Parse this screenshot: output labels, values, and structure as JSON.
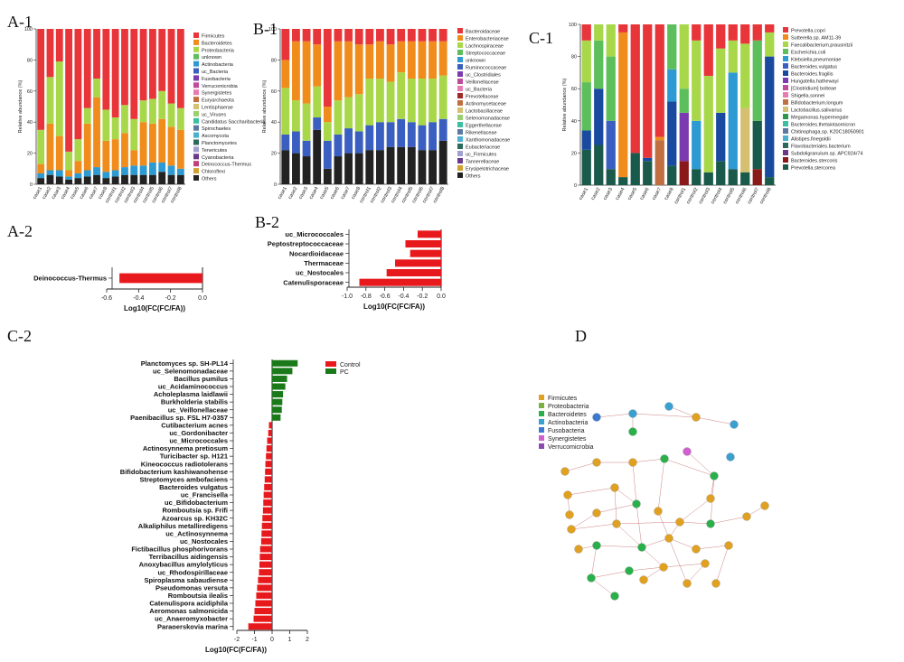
{
  "panels": {
    "a1": "A-1",
    "b1": "B-1",
    "c1": "C-1",
    "a2": "A-2",
    "b2": "B-2",
    "c2": "C-2",
    "d": "D"
  },
  "samples": [
    "case1",
    "case2",
    "case3",
    "case4",
    "case5",
    "case6",
    "case7",
    "case8",
    "control1",
    "control2",
    "control3",
    "control4",
    "control5",
    "control6",
    "control7",
    "control8"
  ],
  "ylabel_rel": "Relative abundance (%)",
  "yticks_rel": [
    0,
    20,
    40,
    60,
    80,
    100
  ],
  "chart_data": [
    {
      "id": "A1",
      "type": "bar",
      "stacked": true,
      "ylabel": "Relative abundance (%)",
      "ylim": [
        0,
        100
      ],
      "categories": [
        "case1",
        "case2",
        "case3",
        "case4",
        "case5",
        "case6",
        "case7",
        "case8",
        "control1",
        "control2",
        "control3",
        "control4",
        "control5",
        "control6",
        "control7",
        "control8"
      ],
      "legend": [
        "Firmicutes",
        "Bacteroidetes",
        "Proteobacteria",
        "unknown",
        "Actinobacteria",
        "uc_Bacteria",
        "Fusobacteria",
        "Verrucomicrobia",
        "Synergistetes",
        "Euryarchaeota",
        "Lentisphaerae",
        "uc_Viruses",
        "Candidatus Saccharibacteria",
        "Spirochaetes",
        "Ascomycota",
        "Planctomycetes",
        "Tenericutes",
        "Cyanobacteria",
        "Deinococcus-Thermus",
        "Chloroflexi",
        "Others"
      ],
      "colors": [
        "#e8353a",
        "#f08c1c",
        "#a8d84a",
        "#5cbf5c",
        "#2d9ad4",
        "#3a5fc0",
        "#7a3ab0",
        "#c04b9a",
        "#e87bb0",
        "#c07040",
        "#d4c070",
        "#9ad070",
        "#3ac0a0",
        "#5a7aa0",
        "#4ab0d0",
        "#2a6a5a",
        "#a0a0d0",
        "#6a3a8a",
        "#c0407a",
        "#d0a030",
        "#222222"
      ],
      "series_order": [
        "Others",
        "Firmicutes_base",
        "Proteobacteria",
        "Bacteroidetes",
        "Firmicutes_top"
      ],
      "stacks": [
        {
          "Others": 4,
          "Actinobacteria": 3,
          "Bacteroidetes": 6,
          "Proteobacteria": 22,
          "Firmicutes": 65
        },
        {
          "Others": 6,
          "Actinobacteria": 3,
          "Bacteroidetes": 30,
          "Proteobacteria": 30,
          "Firmicutes": 31
        },
        {
          "Others": 5,
          "Actinobacteria": 4,
          "Bacteroidetes": 22,
          "Proteobacteria": 48,
          "Firmicutes": 21
        },
        {
          "Others": 3,
          "Actinobacteria": 2,
          "Bacteroidetes": 4,
          "Proteobacteria": 12,
          "Firmicutes": 79
        },
        {
          "Others": 4,
          "Actinobacteria": 3,
          "Bacteroidetes": 8,
          "Proteobacteria": 14,
          "Firmicutes": 71
        },
        {
          "Others": 5,
          "Actinobacteria": 4,
          "Bacteroidetes": 30,
          "Proteobacteria": 10,
          "Firmicutes": 51
        },
        {
          "Others": 6,
          "Actinobacteria": 5,
          "Bacteroidetes": 45,
          "Proteobacteria": 12,
          "Firmicutes": 32
        },
        {
          "Others": 4,
          "Actinobacteria": 4,
          "Bacteroidetes": 20,
          "Proteobacteria": 20,
          "Firmicutes": 52
        },
        {
          "Others": 5,
          "Actinobacteria": 4,
          "Bacteroidetes": 20,
          "Proteobacteria": 14,
          "Firmicutes": 57
        },
        {
          "Others": 6,
          "Actinobacteria": 5,
          "Bacteroidetes": 22,
          "Proteobacteria": 18,
          "Firmicutes": 49
        },
        {
          "Others": 6,
          "Actinobacteria": 6,
          "Bacteroidetes": 10,
          "Proteobacteria": 20,
          "Firmicutes": 58
        },
        {
          "Others": 6,
          "Actinobacteria": 6,
          "Bacteroidetes": 28,
          "Proteobacteria": 14,
          "Firmicutes": 46
        },
        {
          "Others": 6,
          "Actinobacteria": 8,
          "Bacteroidetes": 25,
          "Proteobacteria": 16,
          "Firmicutes": 45
        },
        {
          "Others": 8,
          "Actinobacteria": 6,
          "Bacteroidetes": 28,
          "Proteobacteria": 18,
          "Firmicutes": 40
        },
        {
          "Others": 6,
          "Actinobacteria": 6,
          "Bacteroidetes": 25,
          "Proteobacteria": 15,
          "Firmicutes": 48
        },
        {
          "Others": 6,
          "Actinobacteria": 4,
          "Bacteroidetes": 25,
          "Proteobacteria": 14,
          "Firmicutes": 51
        }
      ]
    },
    {
      "id": "B1",
      "type": "bar",
      "stacked": true,
      "ylabel": "Relative abundance (%)",
      "ylim": [
        0,
        100
      ],
      "categories": [
        "case1",
        "case2",
        "case3",
        "case4",
        "case5",
        "case6",
        "case7",
        "case8",
        "control1",
        "control2",
        "control3",
        "control4",
        "control5",
        "control6",
        "control7",
        "control8"
      ],
      "legend": [
        "Bacteroidaceae",
        "Enterobacteriaceae",
        "Lachnospiraceae",
        "Streptococcaceae",
        "unknown",
        "Ruminococcaceae",
        "uc_Clostridiales",
        "Veillonellaceae",
        "uc_Bacteria",
        "Prevotellaceae",
        "Actinomycetaceae",
        "Lactobacillaceae",
        "Selenomonadaceae",
        "Eggerthellaceae",
        "Rikenellaceae",
        "Xanthomonadaceae",
        "Eubacteriaceae",
        "uc_Firmicutes",
        "Tannerellaceae",
        "Erysipelotrichaceae",
        "Others"
      ],
      "colors": [
        "#e8353a",
        "#f08c1c",
        "#a8d84a",
        "#5cbf5c",
        "#2d9ad4",
        "#3a5fc0",
        "#7a3ab0",
        "#c04b9a",
        "#e87bb0",
        "#a02a2a",
        "#c07040",
        "#d4c070",
        "#9ad070",
        "#3ac0a0",
        "#5a7aa0",
        "#4ab0d0",
        "#2a6a5a",
        "#a0a0d0",
        "#6a3a8a",
        "#d0a030",
        "#222222"
      ],
      "stacks": [
        {
          "Others": 22,
          "Ruminococcaceae": 10,
          "Lachnospiraceae": 30,
          "Enterobacteriaceae": 18,
          "Bacteroidaceae": 20
        },
        {
          "Others": 20,
          "Ruminococcaceae": 14,
          "Lachnospiraceae": 20,
          "Enterobacteriaceae": 38,
          "Bacteroidaceae": 8
        },
        {
          "Others": 18,
          "Ruminococcaceae": 10,
          "Lachnospiraceae": 24,
          "Enterobacteriaceae": 40,
          "Bacteroidaceae": 8
        },
        {
          "Others": 35,
          "Ruminococcaceae": 8,
          "Lachnospiraceae": 20,
          "Enterobacteriaceae": 27,
          "Bacteroidaceae": 10
        },
        {
          "Others": 10,
          "Ruminococcaceae": 18,
          "Lachnospiraceae": 12,
          "Enterobacteriaceae": 10,
          "Bacteroidaceae": 50
        },
        {
          "Others": 18,
          "Ruminococcaceae": 14,
          "Lachnospiraceae": 22,
          "Enterobacteriaceae": 38,
          "Bacteroidaceae": 8
        },
        {
          "Others": 20,
          "Ruminococcaceae": 16,
          "Lachnospiraceae": 20,
          "Enterobacteriaceae": 36,
          "Bacteroidaceae": 8
        },
        {
          "Others": 20,
          "Ruminococcaceae": 14,
          "Lachnospiraceae": 24,
          "Enterobacteriaceae": 32,
          "Bacteroidaceae": 10
        },
        {
          "Others": 22,
          "Ruminococcaceae": 16,
          "Lachnospiraceae": 30,
          "Enterobacteriaceae": 22,
          "Bacteroidaceae": 10
        },
        {
          "Others": 22,
          "Ruminococcaceae": 18,
          "Lachnospiraceae": 28,
          "Enterobacteriaceae": 24,
          "Bacteroidaceae": 8
        },
        {
          "Others": 24,
          "Ruminococcaceae": 16,
          "Lachnospiraceae": 26,
          "Enterobacteriaceae": 24,
          "Bacteroidaceae": 10
        },
        {
          "Others": 24,
          "Ruminococcaceae": 18,
          "Lachnospiraceae": 30,
          "Enterobacteriaceae": 20,
          "Bacteroidaceae": 8
        },
        {
          "Others": 24,
          "Ruminococcaceae": 16,
          "Lachnospiraceae": 28,
          "Enterobacteriaceae": 24,
          "Bacteroidaceae": 8
        },
        {
          "Others": 22,
          "Ruminococcaceae": 16,
          "Lachnospiraceae": 30,
          "Enterobacteriaceae": 24,
          "Bacteroidaceae": 8
        },
        {
          "Others": 22,
          "Ruminococcaceae": 18,
          "Lachnospiraceae": 28,
          "Enterobacteriaceae": 24,
          "Bacteroidaceae": 8
        },
        {
          "Others": 28,
          "Ruminococcaceae": 14,
          "Lachnospiraceae": 28,
          "Enterobacteriaceae": 22,
          "Bacteroidaceae": 8
        }
      ]
    },
    {
      "id": "C1",
      "type": "bar",
      "stacked": true,
      "ylabel": "Relative abundance (%)",
      "ylim": [
        0,
        100
      ],
      "categories": [
        "case1",
        "case2",
        "case3",
        "case4",
        "case5",
        "case6",
        "case7",
        "case8",
        "control1",
        "control2",
        "control3",
        "control4",
        "control5",
        "control6",
        "control7",
        "control8"
      ],
      "legend": [
        "Prevotella.copri",
        "Sutterella.sp. AM11-39",
        "Faecalibacterium.prausnitzii",
        "Escherichia.coli",
        "Klebsiella.pneumoniae",
        "Bacteroides.vulgatus",
        "Bacteroides.fragilis",
        "Hungatella.hathewayi",
        "[Clostridium] bolteae",
        "Shigella.sonnei",
        "Bifidobacterium.longum",
        "Lactobacillus.salivarius",
        "Megamonas.hypermegale",
        "Bacteroides.thetaiotaomicron",
        "Chitinophaga.sp. K20C18050901",
        "Alistipes.finegoldii",
        "Flavobacteriales.bacterium",
        "Subdoligranulum.sp. APC924/74",
        "Bacteroides.stercoris",
        "Prevotella.stercorea"
      ],
      "colors": [
        "#e8353a",
        "#f08c1c",
        "#a8d84a",
        "#5cbf5c",
        "#2d9ad4",
        "#3a5fc0",
        "#1a4aa0",
        "#7a3ab0",
        "#c04b9a",
        "#e87bb0",
        "#c07040",
        "#d4c070",
        "#2a9a4a",
        "#3ac0a0",
        "#5a7aa0",
        "#4ab0d0",
        "#2a6a5a",
        "#6a3a8a",
        "#8a1a1a",
        "#1a5a4a"
      ],
      "stacks": [
        {
          "Prevotella.stercorea": 22,
          "Bacteroides.fragilis": 12,
          "Escherichia.coli": 30,
          "Faecalibacterium.prausnitzii": 26,
          "Prevotella.copri": 10
        },
        {
          "Prevotella.stercorea": 25,
          "Bacteroides.fragilis": 35,
          "Escherichia.coli": 30,
          "Faecalibacterium.prausnitzii": 10
        },
        {
          "Prevotella.stercorea": 10,
          "Bacteroides.vulgatus": 30,
          "Escherichia.coli": 40,
          "Faecalibacterium.prausnitzii": 20
        },
        {
          "Prevotella.stercorea": 5,
          "Sutterella.sp. AM11-39": 90,
          "Prevotella.copri": 5
        },
        {
          "Prevotella.stercorea": 20,
          "Prevotella.copri": 80
        },
        {
          "Prevotella.stercorea": 15,
          "Bacteroides.fragilis": 2,
          "Prevotella.copri": 83
        },
        {
          "Bifidobacterium.longum": 28,
          "Sutterella.sp. AM11-39": 2,
          "Prevotella.copri": 70
        },
        {
          "Prevotella.stercorea": 12,
          "Bacteroides.fragilis": 40,
          "Klebsiella.pneumoniae": 20,
          "Escherichia.coli": 28
        },
        {
          "Bacteroides.stercoris": 15,
          "Hungatella.hathewayi": 30,
          "Escherichia.coli": 15,
          "Faecalibacterium.prausnitzii": 40
        },
        {
          "Prevotella.stercorea": 10,
          "Klebsiella.pneumoniae": 30,
          "Faecalibacterium.prausnitzii": 50,
          "Prevotella.copri": 10
        },
        {
          "Prevotella.stercorea": 8,
          "Faecalibacterium.prausnitzii": 60,
          "Prevotella.copri": 32
        },
        {
          "Prevotella.stercorea": 15,
          "Bacteroides.fragilis": 30,
          "Faecalibacterium.prausnitzii": 40,
          "Prevotella.copri": 15
        },
        {
          "Prevotella.stercorea": 10,
          "Klebsiella.pneumoniae": 60,
          "Faecalibacterium.prausnitzii": 20,
          "Prevotella.copri": 10
        },
        {
          "Prevotella.stercorea": 8,
          "Lactobacillus.salivarius": 40,
          "Faecalibacterium.prausnitzii": 40,
          "Prevotella.copri": 12
        },
        {
          "Bacteroides.stercoris": 10,
          "Prevotella.stercorea": 30,
          "Escherichia.coli": 50,
          "Prevotella.copri": 10
        },
        {
          "Prevotella.stercorea": 5,
          "Bacteroides.fragilis": 75,
          "Faecalibacterium.prausnitzii": 15,
          "Prevotella.copri": 5
        }
      ]
    },
    {
      "id": "A2",
      "type": "bar",
      "orientation": "horizontal",
      "xlabel": "Log10(FC(FC/FA))",
      "xlim": [
        -0.6,
        0.0
      ],
      "xticks": [
        "-0.6",
        "-0.4",
        "-0.2",
        "0.0"
      ],
      "categories": [
        "Deinococcus-Thermus"
      ],
      "values": [
        -0.52
      ]
    },
    {
      "id": "B2",
      "type": "bar",
      "orientation": "horizontal",
      "xlabel": "Log10(FC(FC/FA))",
      "xlim": [
        -1.0,
        0.0
      ],
      "xticks": [
        "-1.0",
        "-0.8",
        "-0.6",
        "-0.4",
        "-0.2",
        "0.0"
      ],
      "categories": [
        "uc_Micrococcales",
        "Peptostreptococcaceae",
        "Nocardioidaceae",
        "Thermaceae",
        "uc_Nostocales",
        "Catenulisporaceae"
      ],
      "values": [
        -0.25,
        -0.38,
        -0.33,
        -0.49,
        -0.58,
        -0.87
      ]
    },
    {
      "id": "C2",
      "type": "bar",
      "orientation": "horizontal",
      "xlabel": "Log10(FC(FC/FA))",
      "xlim": [
        -2,
        2
      ],
      "xticks": [
        "-2",
        "-1",
        "0",
        "1",
        "2"
      ],
      "legend": [
        "Control",
        "PC"
      ],
      "legend_colors": [
        "#e8191c",
        "#1a7a1a"
      ],
      "categories": [
        "Planctomyces sp. SH-PL14",
        "uc_Selenomonadaceae",
        "Bacillus pumilus",
        "uc_Acidaminococcus",
        "Acholeplasma laidlawii",
        "Burkholderia stabilis",
        "uc_Veillonellaceae",
        "Paenibacillus sp. FSL H7-0357",
        "Cutibacterium acnes",
        "uc_Gordonibacter",
        "uc_Micrococcales",
        "Actinosynnema pretiosum",
        "Turicibacter sp. H121",
        "Kineococcus radiotolerans",
        "Bifidobacterium kashiwanohense",
        "Streptomyces ambofaciens",
        "Bacteroides vulgatus",
        "uc_Francisella",
        "uc_Bifidobacterium",
        "Romboutsia sp. Frifi",
        "Azoarcus sp. KH32C",
        "Alkaliphilus metalliredigens",
        "uc_Actinosynnema",
        "uc_Nostocales",
        "Fictibacillus phosphorivorans",
        "Terribacillus aidingensis",
        "Anoxybacillus amylolyticus",
        "uc_Rhodospirillaceae",
        "Spiroplasma sabaudiense",
        "Pseudomonas versuta",
        "Romboutsia ilealis",
        "Catenulispora acidiphila",
        "Aeromonas salmonicida",
        "uc_Anaeromyxobacter",
        "Paraoerskovia marina"
      ],
      "values": [
        1.45,
        1.15,
        0.85,
        0.75,
        0.62,
        0.58,
        0.55,
        0.48,
        -0.18,
        -0.22,
        -0.28,
        -0.32,
        -0.35,
        -0.38,
        -0.4,
        -0.42,
        -0.45,
        -0.48,
        -0.5,
        -0.52,
        -0.55,
        -0.58,
        -0.6,
        -0.62,
        -0.68,
        -0.7,
        -0.72,
        -0.75,
        -0.8,
        -0.85,
        -0.9,
        -0.95,
        -1.0,
        -1.05,
        -1.35
      ]
    }
  ],
  "network": {
    "legend": [
      "Firmicutes",
      "Proteobacteria",
      "Bacteroidetes",
      "Actinobacteria",
      "Fusobacteria",
      "Synergistetes",
      "Verrucomicrobia"
    ],
    "colors": [
      "#e0a020",
      "#7ab040",
      "#2ab04a",
      "#3aa0d0",
      "#3a7ad0",
      "#d060d0",
      "#8a4ab0"
    ]
  }
}
